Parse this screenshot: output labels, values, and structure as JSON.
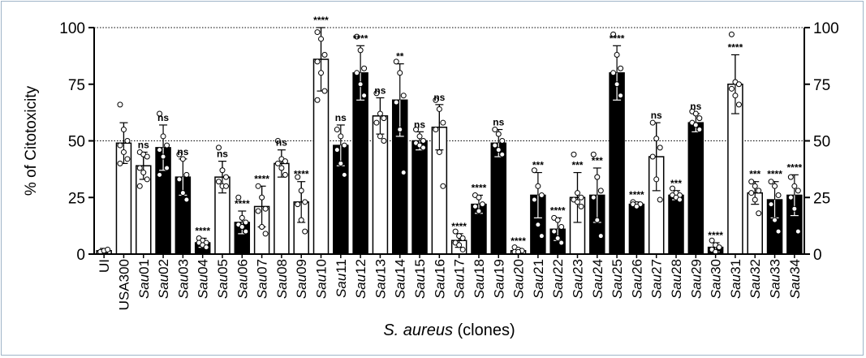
{
  "chart_data": {
    "type": "bar",
    "ylabel": "% of Citotoxicity",
    "xlabel_italic": "S. aureus",
    "xlabel_rest": " (clones)",
    "ylim": [
      0,
      100
    ],
    "yticks": [
      0,
      25,
      50,
      75,
      100
    ],
    "reference_lines": [
      50,
      100
    ],
    "right_axis": true,
    "categories": [
      "UI",
      "USA300",
      "Sau01",
      "Sau02",
      "Sau03",
      "Sau04",
      "Sau05",
      "Sau06",
      "Sau07",
      "Sau08",
      "Sau09",
      "Sau10",
      "Sau11",
      "Sau12",
      "Sau13",
      "Sau14",
      "Sau15",
      "Sau16",
      "Sau17",
      "Sau18",
      "Sau19",
      "Sau20",
      "Sau21",
      "Sau22",
      "Sau23",
      "Sau24",
      "Sau25",
      "Sau26",
      "Sau27",
      "Sau28",
      "Sau29",
      "Sau30",
      "Sau31",
      "Sau32",
      "Sau33",
      "Sau34"
    ],
    "category_prefix": [
      "",
      "USA300",
      "Sau",
      "Sau",
      "Sau",
      "Sau",
      "Sau",
      "Sau",
      "Sau",
      "Sau",
      "Sau",
      "Sau",
      "Sau",
      "Sau",
      "Sau",
      "Sau",
      "Sau",
      "Sau",
      "Sau",
      "Sau",
      "Sau",
      "Sau",
      "Sau",
      "Sau",
      "Sau",
      "Sau",
      "Sau",
      "Sau",
      "Sau",
      "Sau",
      "Sau",
      "Sau",
      "Sau",
      "Sau",
      "Sau",
      "Sau"
    ],
    "category_suffix": [
      "UI",
      "",
      "01",
      "02",
      "03",
      "04",
      "05",
      "06",
      "07",
      "08",
      "09",
      "10",
      "11",
      "12",
      "13",
      "14",
      "15",
      "16",
      "17",
      "18",
      "19",
      "20",
      "21",
      "22",
      "23",
      "24",
      "25",
      "26",
      "27",
      "28",
      "29",
      "30",
      "31",
      "32",
      "33",
      "34"
    ],
    "values": [
      1.5,
      49,
      39,
      47,
      34,
      5,
      34,
      14,
      21,
      40,
      23,
      86,
      48,
      80,
      61,
      68,
      50,
      56,
      6,
      22,
      49,
      1.5,
      26,
      11,
      25,
      26,
      80,
      22,
      43,
      26,
      58,
      3,
      75,
      27,
      24,
      26
    ],
    "errors": [
      1,
      9,
      6,
      10,
      8,
      2,
      7,
      5,
      9,
      6,
      9,
      14,
      9,
      12,
      8,
      16,
      4,
      10,
      3,
      4,
      6,
      1,
      10,
      5,
      11,
      12,
      12,
      1,
      15,
      2,
      4,
      2,
      13,
      5,
      8,
      9
    ],
    "filled": [
      false,
      false,
      false,
      true,
      true,
      true,
      false,
      true,
      false,
      false,
      false,
      false,
      true,
      true,
      false,
      true,
      true,
      false,
      false,
      true,
      true,
      false,
      true,
      true,
      false,
      true,
      true,
      true,
      false,
      true,
      true,
      true,
      false,
      false,
      true,
      true
    ],
    "points": [
      [
        1,
        1.5,
        2
      ],
      [
        66,
        55,
        50,
        48,
        45,
        42,
        40
      ],
      [
        45,
        44,
        43,
        38,
        36,
        33,
        30
      ],
      [
        62,
        52,
        48,
        46,
        43,
        38,
        35
      ],
      [
        44,
        42,
        35,
        33,
        27,
        24
      ],
      [
        7,
        6,
        5,
        5,
        4,
        3
      ],
      [
        47,
        37,
        34,
        32,
        30,
        30
      ],
      [
        25,
        16,
        14,
        13,
        12,
        10
      ],
      [
        30,
        25,
        20,
        19,
        12,
        9
      ],
      [
        50,
        42,
        41,
        40,
        38,
        35
      ],
      [
        34,
        28,
        23,
        22,
        15,
        10
      ],
      [
        98,
        95,
        88,
        85,
        80,
        72,
        68
      ],
      [
        55,
        52,
        48,
        46,
        40,
        35
      ],
      [
        96,
        90,
        82,
        80,
        75,
        70
      ],
      [
        71,
        62,
        60,
        58,
        52,
        50
      ],
      [
        85,
        80,
        70,
        67,
        55,
        36
      ],
      [
        55,
        52,
        50,
        49,
        48,
        47
      ],
      [
        68,
        64,
        58,
        55,
        45,
        30
      ],
      [
        10,
        8,
        7,
        5,
        4,
        2
      ],
      [
        26,
        25,
        22,
        21,
        19
      ],
      [
        55,
        53,
        50,
        48,
        46,
        44
      ],
      [
        3,
        2,
        1.5,
        1,
        1
      ],
      [
        37,
        30,
        26,
        24,
        13,
        8
      ],
      [
        16,
        15,
        12,
        10,
        7,
        5
      ],
      [
        44,
        27,
        25,
        24,
        23,
        21
      ],
      [
        44,
        34,
        28,
        25,
        15,
        8
      ],
      [
        97,
        88,
        82,
        80,
        75,
        70
      ],
      [
        23,
        22,
        22,
        22,
        21
      ],
      [
        58,
        51,
        47,
        43,
        33,
        24
      ],
      [
        29,
        27,
        26,
        26,
        25,
        24
      ],
      [
        63,
        62,
        60,
        58,
        57,
        55
      ],
      [
        6,
        4,
        3,
        2,
        1
      ],
      [
        97,
        76,
        75,
        73,
        70,
        66
      ],
      [
        32,
        30,
        28,
        27,
        24,
        18
      ],
      [
        32,
        30,
        26,
        22,
        15,
        10
      ],
      [
        34,
        30,
        28,
        25,
        20,
        10
      ]
    ],
    "significance": [
      "",
      "",
      "ns",
      "ns",
      "ns",
      "****",
      "ns",
      "****",
      "****",
      "ns",
      "****",
      "****",
      "ns",
      "****",
      "ns",
      "**",
      "ns",
      "ns",
      "****",
      "****",
      "ns",
      "****",
      "***",
      "****",
      "***",
      "***",
      "****",
      "****",
      "ns",
      "***",
      "ns",
      "****",
      "****",
      "***",
      "****",
      "****"
    ]
  }
}
